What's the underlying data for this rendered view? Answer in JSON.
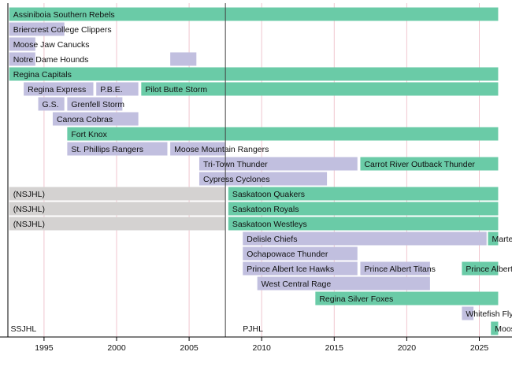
{
  "chart_data": {
    "type": "timeline",
    "xlim": [
      1992.5,
      2026.3
    ],
    "x_ticks": [
      1995,
      2000,
      2005,
      2010,
      2015,
      2020,
      2025
    ],
    "grid": true,
    "divider_year": 2007.5,
    "colors": {
      "active": "#6acba7",
      "defunct": "#c1bfdf",
      "other_league": "#d4d2d1",
      "grid": "#f0c6cf"
    },
    "league_labels": [
      {
        "text": "SSJHL",
        "year": 1992.7
      },
      {
        "text": "PJHL",
        "year": 2008.7
      }
    ],
    "rows": [
      [
        {
          "label": "Assiniboia Southern Rebels",
          "start": 1992.6,
          "end": 2026.3,
          "status": "active"
        }
      ],
      [
        {
          "label": "Briercrest College Clippers",
          "start": 1992.6,
          "end": 1996.4,
          "status": "defunct"
        }
      ],
      [
        {
          "label": "Moose Jaw Canucks",
          "start": 1992.6,
          "end": 1994.4,
          "status": "defunct"
        }
      ],
      [
        {
          "label": "Notre Dame Hounds",
          "start": 1992.6,
          "end": 1994.4,
          "status": "defunct"
        },
        {
          "label": "",
          "start": 2003.7,
          "end": 2005.5,
          "status": "defunct"
        }
      ],
      [
        {
          "label": "Regina Capitals",
          "start": 1992.6,
          "end": 2026.3,
          "status": "active"
        }
      ],
      [
        {
          "label": "Regina Express",
          "start": 1993.6,
          "end": 1998.4,
          "status": "defunct"
        },
        {
          "label": "P.B.E.",
          "start": 1998.6,
          "end": 2001.5,
          "status": "defunct"
        },
        {
          "label": "Pilot Butte Storm",
          "start": 2001.7,
          "end": 2026.3,
          "status": "active"
        }
      ],
      [
        {
          "label": "G.S.",
          "start": 1994.6,
          "end": 1996.4,
          "status": "defunct"
        },
        {
          "label": "Grenfell Storm",
          "start": 1996.6,
          "end": 2000.4,
          "status": "defunct"
        }
      ],
      [
        {
          "label": "Canora Cobras",
          "start": 1995.6,
          "end": 2001.5,
          "status": "defunct"
        }
      ],
      [
        {
          "label": "Fort Knox",
          "start": 1996.6,
          "end": 2026.3,
          "status": "active"
        }
      ],
      [
        {
          "label": "St. Phillips Rangers",
          "start": 1996.6,
          "end": 2003.5,
          "status": "defunct"
        },
        {
          "label": "Moose Mountain Rangers",
          "start": 2003.7,
          "end": 2007.5,
          "status": "defunct"
        }
      ],
      [
        {
          "label": "Tri-Town Thunder",
          "start": 2005.7,
          "end": 2016.6,
          "status": "defunct"
        },
        {
          "label": "Carrot River Outback Thunder",
          "start": 2016.8,
          "end": 2026.3,
          "status": "active"
        }
      ],
      [
        {
          "label": "Cypress Cyclones",
          "start": 2005.7,
          "end": 2014.5,
          "status": "defunct"
        }
      ],
      [
        {
          "label": "(NSJHL)",
          "start": 1992.6,
          "end": 2007.5,
          "status": "other_league"
        },
        {
          "label": "Saskatoon Quakers",
          "start": 2007.7,
          "end": 2026.3,
          "status": "active"
        }
      ],
      [
        {
          "label": "(NSJHL)",
          "start": 1992.6,
          "end": 2007.5,
          "status": "other_league"
        },
        {
          "label": "Saskatoon Royals",
          "start": 2007.7,
          "end": 2026.3,
          "status": "active"
        }
      ],
      [
        {
          "label": "(NSJHL)",
          "start": 1992.6,
          "end": 2007.5,
          "status": "other_league"
        },
        {
          "label": "Saskatoon Westleys",
          "start": 2007.7,
          "end": 2026.3,
          "status": "active"
        }
      ],
      [
        {
          "label": "Delisle Chiefs",
          "start": 2008.7,
          "end": 2025.5,
          "status": "defunct"
        },
        {
          "label": "Marte",
          "start": 2025.6,
          "end": 2026.3,
          "status": "active"
        }
      ],
      [
        {
          "label": "Ochapowace Thunder",
          "start": 2008.7,
          "end": 2016.6,
          "status": "defunct"
        }
      ],
      [
        {
          "label": "Prince Albert Ice Hawks",
          "start": 2008.7,
          "end": 2016.6,
          "status": "defunct"
        },
        {
          "label": "Prince Albert Titans",
          "start": 2016.8,
          "end": 2021.6,
          "status": "defunct"
        },
        {
          "label": "Prince Albert",
          "start": 2023.8,
          "end": 2026.3,
          "status": "active"
        }
      ],
      [
        {
          "label": "West Central Rage",
          "start": 2009.7,
          "end": 2021.6,
          "status": "defunct"
        }
      ],
      [
        {
          "label": "Regina Silver Foxes",
          "start": 2013.7,
          "end": 2026.3,
          "status": "active"
        }
      ],
      [
        {
          "label": "Whitefish Fly",
          "start": 2023.8,
          "end": 2024.6,
          "status": "defunct"
        }
      ],
      [
        {
          "label": "Moos",
          "start": 2025.8,
          "end": 2026.3,
          "status": "active"
        }
      ]
    ]
  }
}
